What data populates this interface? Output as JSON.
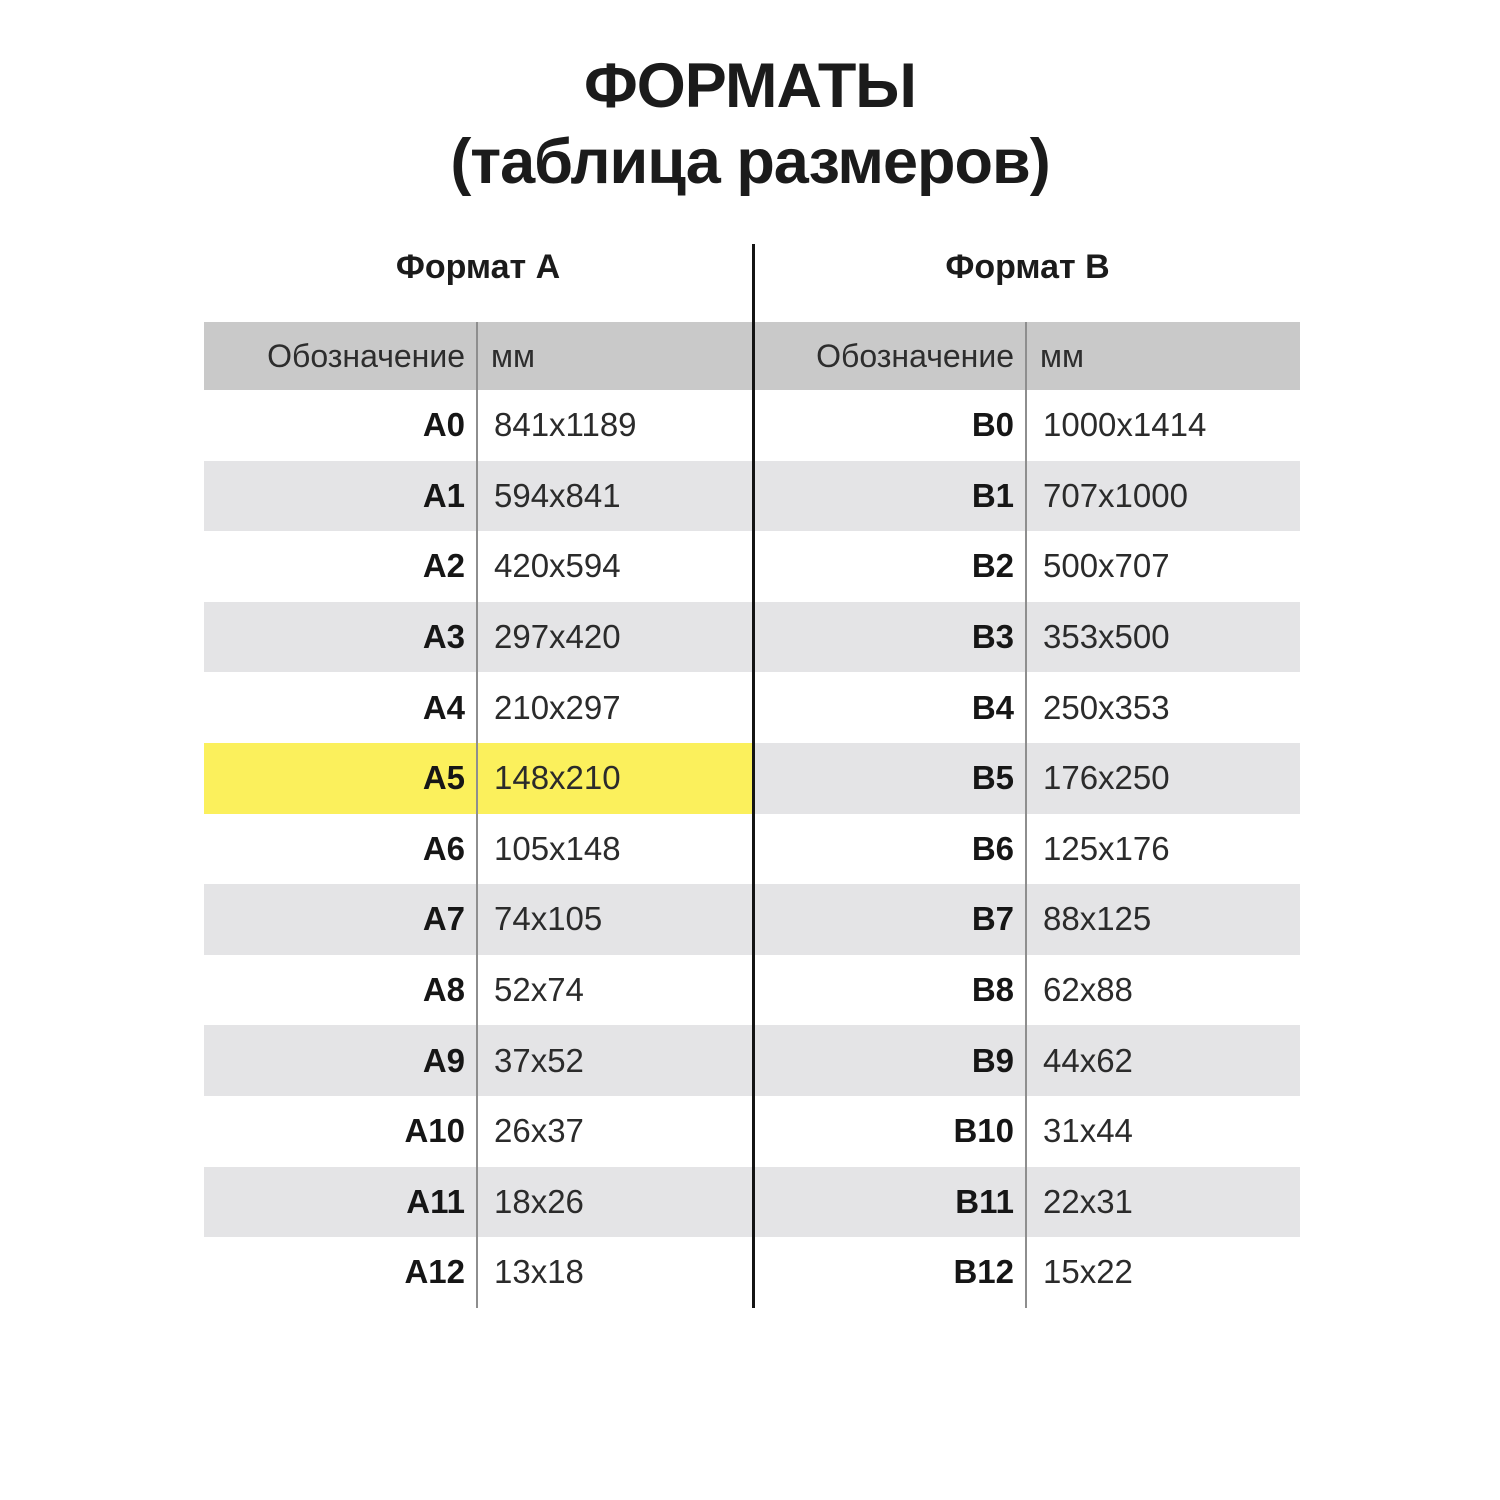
{
  "title": {
    "line1": "ФОРМАТЫ",
    "line2": "(таблица размеров)"
  },
  "colors": {
    "highlight": "#fbf05c",
    "headband": "#c9c9c9",
    "stripe": "#e4e4e6",
    "divider": "#141414",
    "colline": "#8e8e8e"
  },
  "tables": [
    {
      "title": "Формат А",
      "columns": {
        "designation": "Обозначение",
        "mm": "мм"
      },
      "rows": [
        {
          "d": "A0",
          "mm": "841x1189"
        },
        {
          "d": "A1",
          "mm": "594x841"
        },
        {
          "d": "A2",
          "mm": "420x594"
        },
        {
          "d": "A3",
          "mm": "297x420"
        },
        {
          "d": "A4",
          "mm": "210x297"
        },
        {
          "d": "A5",
          "mm": "148x210"
        },
        {
          "d": "A6",
          "mm": "105x148"
        },
        {
          "d": "A7",
          "mm": "74x105"
        },
        {
          "d": "A8",
          "mm": "52x74"
        },
        {
          "d": "A9",
          "mm": "37x52"
        },
        {
          "d": "A10",
          "mm": "26x37"
        },
        {
          "d": "A11",
          "mm": "18x26"
        },
        {
          "d": "A12",
          "mm": "13x18"
        }
      ]
    },
    {
      "title": "Формат B",
      "columns": {
        "designation": "Обозначение",
        "mm": "мм"
      },
      "rows": [
        {
          "d": "B0",
          "mm": "1000x1414"
        },
        {
          "d": "B1",
          "mm": "707x1000"
        },
        {
          "d": "B2",
          "mm": "500x707"
        },
        {
          "d": "B3",
          "mm": "353x500"
        },
        {
          "d": "B4",
          "mm": "250x353"
        },
        {
          "d": "B5",
          "mm": "176x250"
        },
        {
          "d": "B6",
          "mm": "125x176"
        },
        {
          "d": "B7",
          "mm": "88x125"
        },
        {
          "d": "B8",
          "mm": "62x88"
        },
        {
          "d": "B9",
          "mm": "44x62"
        },
        {
          "d": "B10",
          "mm": "31x44"
        },
        {
          "d": "B11",
          "mm": "22x31"
        },
        {
          "d": "B12",
          "mm": "15x22"
        }
      ]
    }
  ]
}
